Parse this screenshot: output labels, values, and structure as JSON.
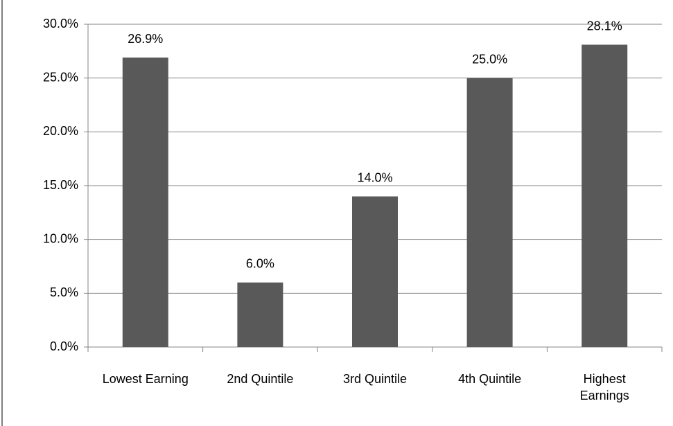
{
  "chart_data": {
    "type": "bar",
    "categories": [
      "Lowest Earning",
      "2nd Quintile",
      "3rd Quintile",
      "4th Quintile",
      "Highest Earnings"
    ],
    "values": [
      26.9,
      6.0,
      14.0,
      25.0,
      28.1
    ],
    "value_labels": [
      "26.9%",
      "6.0%",
      "14.0%",
      "25.0%",
      "28.1%"
    ],
    "color": "#595959",
    "ylim": [
      0,
      30
    ],
    "yticks": [
      {
        "value": 0,
        "label": "0.0%"
      },
      {
        "value": 5,
        "label": "5.0%"
      },
      {
        "value": 10,
        "label": "10.0%"
      },
      {
        "value": 15,
        "label": "15.0%"
      },
      {
        "value": 20,
        "label": "20.0%"
      },
      {
        "value": 25,
        "label": "25.0%"
      },
      {
        "value": 30,
        "label": "30.0%"
      }
    ],
    "grid": true
  }
}
